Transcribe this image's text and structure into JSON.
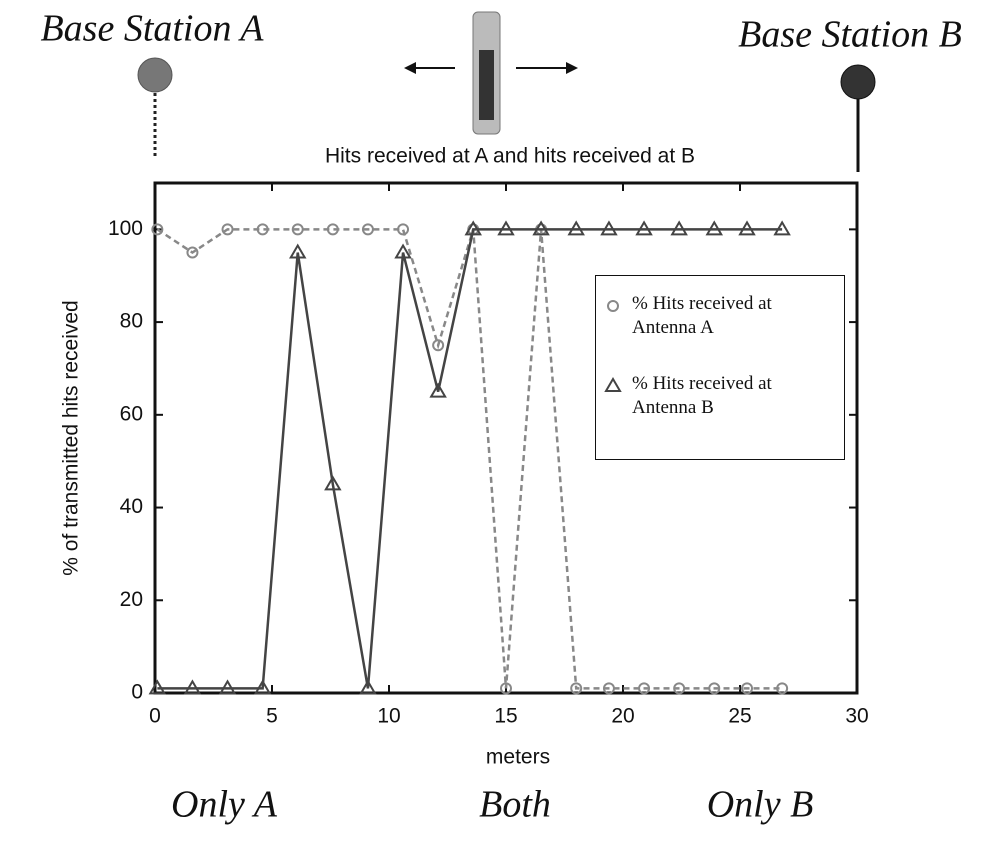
{
  "chart_data": {
    "type": "line",
    "title": "Hits received at A and hits received at B",
    "xlabel": "meters",
    "ylabel": "% of transmitted hits received",
    "annotations": [
      "Base Station A",
      "Base Station B",
      "Only A",
      "Both",
      "Only B"
    ],
    "x": [
      0.1,
      1.6,
      3.1,
      4.6,
      6.1,
      7.6,
      9.1,
      10.6,
      12.1,
      13.6,
      15.0,
      16.5,
      18.0,
      19.4,
      20.9,
      22.4,
      23.9,
      25.3,
      26.8
    ],
    "series": [
      {
        "name": "% Hits received at Antenna A",
        "color": "#888888",
        "marker": "circle",
        "dashed": true,
        "values": [
          100,
          95,
          100,
          100,
          100,
          100,
          100,
          100,
          75,
          100,
          1,
          100,
          1,
          1,
          1,
          1,
          1,
          1,
          1
        ]
      },
      {
        "name": "% Hits received at Antenna B",
        "color": "#444444",
        "marker": "triangle",
        "dashed": false,
        "values": [
          1,
          1,
          1,
          1,
          95,
          45,
          1,
          95,
          65,
          100,
          100,
          100,
          100,
          100,
          100,
          100,
          100,
          100,
          100
        ]
      }
    ],
    "xlim": [
      0,
      30
    ],
    "xticks": [
      0,
      5,
      10,
      15,
      20,
      25,
      30
    ],
    "ylim": [
      0,
      110
    ],
    "yticks": [
      0,
      20,
      40,
      60,
      80,
      100
    ],
    "grid": false,
    "legend": "upper right"
  }
}
